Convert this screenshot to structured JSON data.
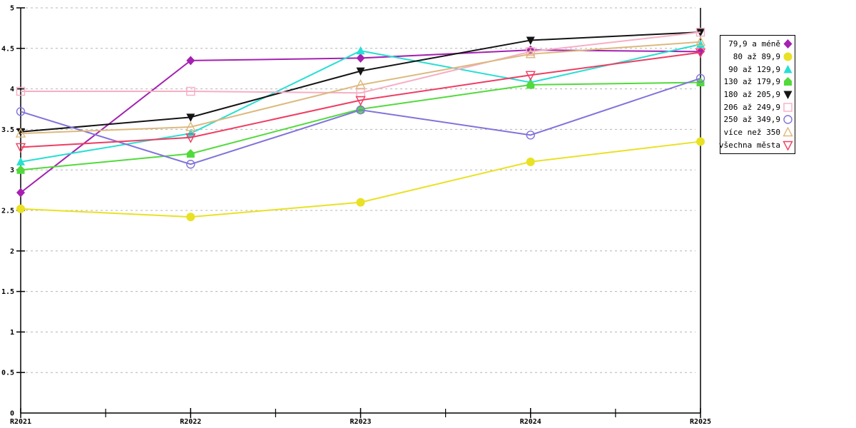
{
  "chart_data": {
    "type": "line",
    "title": "",
    "xlabel": "",
    "ylabel": "",
    "categories": [
      "R2021",
      "R2022",
      "R2023",
      "R2024",
      "R2025"
    ],
    "y_tick_labels": [
      "0",
      "0.5",
      "1",
      "1.5",
      "2",
      "2.5",
      "3",
      "3.5",
      "4",
      "4.5",
      "5"
    ],
    "ylim": [
      0,
      5
    ],
    "y_step": 0.5,
    "grid": "horizontal-dashed",
    "grid_color": "#b4b4b4",
    "axis_color": "#000000",
    "legend_position": "right-outside-boxed",
    "series": [
      {
        "name": "79,9 a méně",
        "color": "#a421b1",
        "marker": "diamond-filled",
        "values": [
          2.72,
          4.35,
          4.38,
          4.48,
          4.46
        ]
      },
      {
        "name": "80 až 89,9",
        "color": "#e9e124",
        "marker": "circle-filled",
        "values": [
          2.52,
          2.42,
          2.6,
          3.1,
          3.35
        ]
      },
      {
        "name": "90 až 129,9",
        "color": "#27dfd3",
        "marker": "triangle-up-filled",
        "values": [
          3.1,
          3.45,
          4.47,
          4.08,
          4.55
        ]
      },
      {
        "name": "130 až 179,9",
        "color": "#52da3b",
        "marker": "house-filled",
        "values": [
          3.0,
          3.2,
          3.75,
          4.05,
          4.08
        ]
      },
      {
        "name": "180 až 205,9",
        "color": "#141414",
        "marker": "triangle-down-filled",
        "values": [
          3.47,
          3.65,
          4.22,
          4.6,
          4.7
        ]
      },
      {
        "name": "206 až 249,9",
        "color": "#f7aec4",
        "marker": "square-open",
        "values": [
          3.97,
          3.97,
          3.95,
          4.46,
          4.7
        ]
      },
      {
        "name": "250 až 349,9",
        "color": "#8173da",
        "marker": "circle-open",
        "values": [
          3.72,
          3.07,
          3.74,
          3.43,
          4.13
        ]
      },
      {
        "name": "více než 350",
        "color": "#dcb97e",
        "marker": "triangle-up-open",
        "values": [
          3.45,
          3.53,
          4.05,
          4.43,
          4.58
        ]
      },
      {
        "name": "všechna města",
        "color": "#ef3d62",
        "marker": "triangle-down-open",
        "values": [
          3.28,
          3.4,
          3.86,
          4.17,
          4.45
        ]
      }
    ]
  }
}
